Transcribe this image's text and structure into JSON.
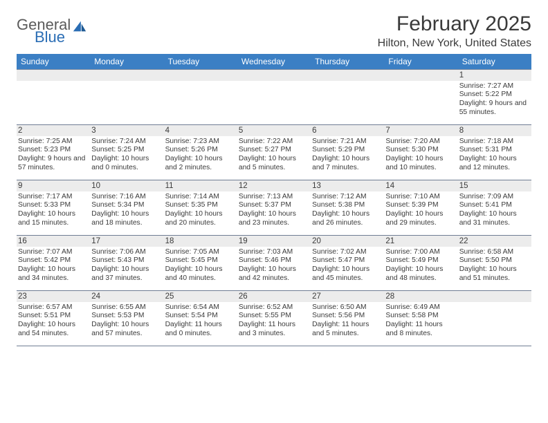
{
  "brand": {
    "general": "General",
    "blue": "Blue"
  },
  "title": "February 2025",
  "location": "Hilton, New York, United States",
  "colors": {
    "header_bg": "#3b7fc4",
    "header_text": "#ffffff",
    "daynum_bg": "#ececec",
    "border": "#6f7d93",
    "text": "#3a3a3a",
    "logo_gray": "#5a5a5a",
    "logo_blue": "#2a6db4"
  },
  "day_names": [
    "Sunday",
    "Monday",
    "Tuesday",
    "Wednesday",
    "Thursday",
    "Friday",
    "Saturday"
  ],
  "weeks": [
    [
      null,
      null,
      null,
      null,
      null,
      null,
      {
        "n": 1,
        "sr": "7:27 AM",
        "ss": "5:22 PM",
        "dl": "9 hours and 55 minutes."
      }
    ],
    [
      {
        "n": 2,
        "sr": "7:25 AM",
        "ss": "5:23 PM",
        "dl": "9 hours and 57 minutes."
      },
      {
        "n": 3,
        "sr": "7:24 AM",
        "ss": "5:25 PM",
        "dl": "10 hours and 0 minutes."
      },
      {
        "n": 4,
        "sr": "7:23 AM",
        "ss": "5:26 PM",
        "dl": "10 hours and 2 minutes."
      },
      {
        "n": 5,
        "sr": "7:22 AM",
        "ss": "5:27 PM",
        "dl": "10 hours and 5 minutes."
      },
      {
        "n": 6,
        "sr": "7:21 AM",
        "ss": "5:29 PM",
        "dl": "10 hours and 7 minutes."
      },
      {
        "n": 7,
        "sr": "7:20 AM",
        "ss": "5:30 PM",
        "dl": "10 hours and 10 minutes."
      },
      {
        "n": 8,
        "sr": "7:18 AM",
        "ss": "5:31 PM",
        "dl": "10 hours and 12 minutes."
      }
    ],
    [
      {
        "n": 9,
        "sr": "7:17 AM",
        "ss": "5:33 PM",
        "dl": "10 hours and 15 minutes."
      },
      {
        "n": 10,
        "sr": "7:16 AM",
        "ss": "5:34 PM",
        "dl": "10 hours and 18 minutes."
      },
      {
        "n": 11,
        "sr": "7:14 AM",
        "ss": "5:35 PM",
        "dl": "10 hours and 20 minutes."
      },
      {
        "n": 12,
        "sr": "7:13 AM",
        "ss": "5:37 PM",
        "dl": "10 hours and 23 minutes."
      },
      {
        "n": 13,
        "sr": "7:12 AM",
        "ss": "5:38 PM",
        "dl": "10 hours and 26 minutes."
      },
      {
        "n": 14,
        "sr": "7:10 AM",
        "ss": "5:39 PM",
        "dl": "10 hours and 29 minutes."
      },
      {
        "n": 15,
        "sr": "7:09 AM",
        "ss": "5:41 PM",
        "dl": "10 hours and 31 minutes."
      }
    ],
    [
      {
        "n": 16,
        "sr": "7:07 AM",
        "ss": "5:42 PM",
        "dl": "10 hours and 34 minutes."
      },
      {
        "n": 17,
        "sr": "7:06 AM",
        "ss": "5:43 PM",
        "dl": "10 hours and 37 minutes."
      },
      {
        "n": 18,
        "sr": "7:05 AM",
        "ss": "5:45 PM",
        "dl": "10 hours and 40 minutes."
      },
      {
        "n": 19,
        "sr": "7:03 AM",
        "ss": "5:46 PM",
        "dl": "10 hours and 42 minutes."
      },
      {
        "n": 20,
        "sr": "7:02 AM",
        "ss": "5:47 PM",
        "dl": "10 hours and 45 minutes."
      },
      {
        "n": 21,
        "sr": "7:00 AM",
        "ss": "5:49 PM",
        "dl": "10 hours and 48 minutes."
      },
      {
        "n": 22,
        "sr": "6:58 AM",
        "ss": "5:50 PM",
        "dl": "10 hours and 51 minutes."
      }
    ],
    [
      {
        "n": 23,
        "sr": "6:57 AM",
        "ss": "5:51 PM",
        "dl": "10 hours and 54 minutes."
      },
      {
        "n": 24,
        "sr": "6:55 AM",
        "ss": "5:53 PM",
        "dl": "10 hours and 57 minutes."
      },
      {
        "n": 25,
        "sr": "6:54 AM",
        "ss": "5:54 PM",
        "dl": "11 hours and 0 minutes."
      },
      {
        "n": 26,
        "sr": "6:52 AM",
        "ss": "5:55 PM",
        "dl": "11 hours and 3 minutes."
      },
      {
        "n": 27,
        "sr": "6:50 AM",
        "ss": "5:56 PM",
        "dl": "11 hours and 5 minutes."
      },
      {
        "n": 28,
        "sr": "6:49 AM",
        "ss": "5:58 PM",
        "dl": "11 hours and 8 minutes."
      },
      null
    ]
  ],
  "labels": {
    "sunrise": "Sunrise:",
    "sunset": "Sunset:",
    "daylight": "Daylight:"
  }
}
